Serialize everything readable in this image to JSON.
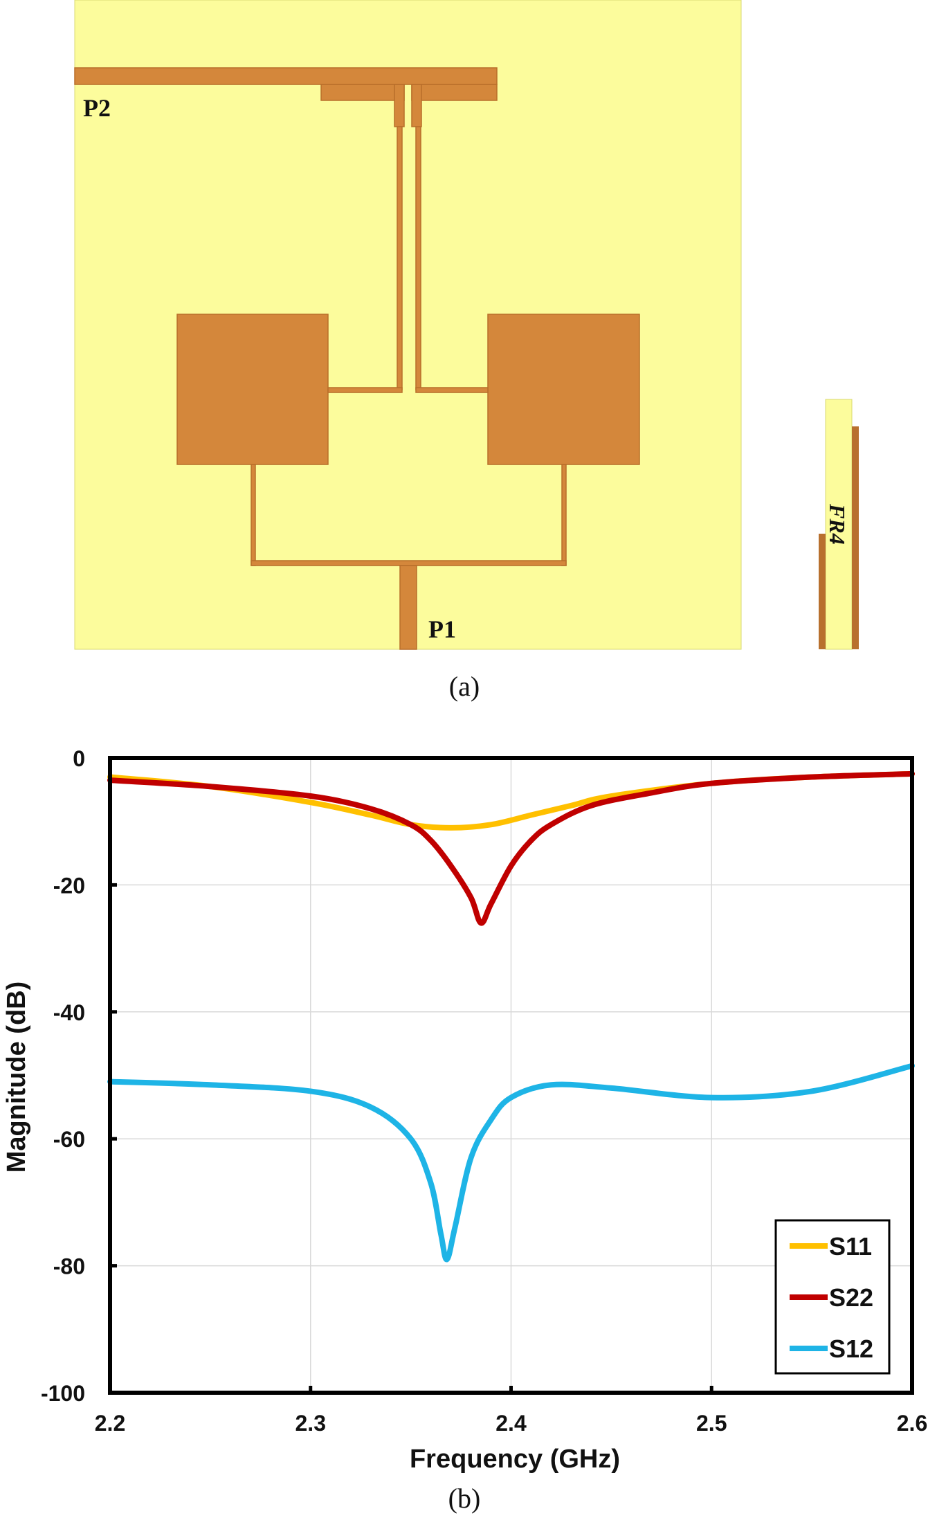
{
  "figure_a": {
    "caption": "(a)",
    "port1_label": "P1",
    "port2_label": "P2",
    "substrate_label": "FR4",
    "colors": {
      "substrate": "#fcfc9c",
      "copper": "#d4873b"
    }
  },
  "figure_b": {
    "caption": "(b)"
  },
  "chart_data": {
    "type": "line",
    "title": "",
    "xlabel": "Frequency (GHz)",
    "ylabel": "Magnitude (dB)",
    "xlim": [
      2.2,
      2.6
    ],
    "ylim": [
      -100,
      0
    ],
    "xticks": [
      "2.2",
      "2.3",
      "2.4",
      "2.5",
      "2.6"
    ],
    "yticks": [
      "0",
      "-20",
      "-40",
      "-60",
      "-80",
      "-100"
    ],
    "grid": true,
    "legend_position": "bottom-right",
    "series": [
      {
        "name": "S11",
        "color": "#ffc000",
        "x": [
          2.2,
          2.25,
          2.3,
          2.33,
          2.35,
          2.37,
          2.39,
          2.41,
          2.43,
          2.45,
          2.5,
          2.55,
          2.6
        ],
        "y": [
          -3,
          -4.5,
          -7,
          -9,
          -10.5,
          -11,
          -10.5,
          -9,
          -7.5,
          -6,
          -4,
          -3,
          -2.5
        ]
      },
      {
        "name": "S22",
        "color": "#c00000",
        "x": [
          2.2,
          2.25,
          2.3,
          2.33,
          2.35,
          2.36,
          2.37,
          2.38,
          2.385,
          2.39,
          2.4,
          2.41,
          2.42,
          2.44,
          2.47,
          2.5,
          2.55,
          2.6
        ],
        "y": [
          -3.5,
          -4.5,
          -6,
          -8,
          -10.5,
          -13,
          -17,
          -22,
          -26,
          -23,
          -17,
          -13,
          -10.5,
          -7.5,
          -5.5,
          -4,
          -3,
          -2.5
        ]
      },
      {
        "name": "S12",
        "color": "#1eb4e6",
        "x": [
          2.2,
          2.25,
          2.3,
          2.33,
          2.35,
          2.36,
          2.365,
          2.368,
          2.372,
          2.38,
          2.39,
          2.4,
          2.42,
          2.45,
          2.5,
          2.55,
          2.6
        ],
        "y": [
          -51,
          -51.5,
          -52.5,
          -55,
          -60,
          -67,
          -75,
          -79,
          -74,
          -63,
          -57,
          -53.5,
          -51.5,
          -52,
          -53.5,
          -52.5,
          -48.5
        ]
      }
    ]
  }
}
